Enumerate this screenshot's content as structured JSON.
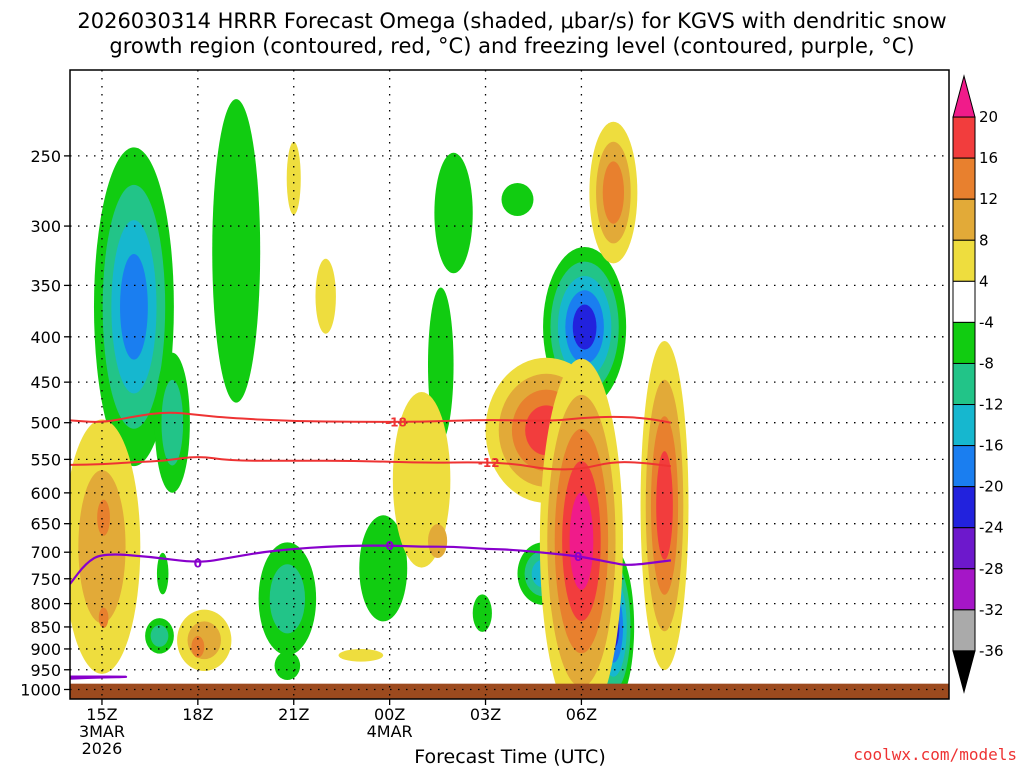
{
  "title_line1": "2026030314 HRRR Forecast Omega (shaded, μbar/s) for KGVS with dendritic snow",
  "title_line2": "growth region (contoured, red, °C) and freezing level (contoured, purple, °C)",
  "credit": "coolwx.com/models",
  "colors": {
    "frame": "#000000",
    "grid": "#000000",
    "ground": "#9c4a1e",
    "dgz": "#ee3333",
    "freezing": "#8800cc"
  },
  "chart_data": {
    "type": "heatmap",
    "xlabel": "Forecast Time (UTC)",
    "ylabel": "",
    "x_range_hours": [
      -1,
      26.5
    ],
    "x_ticks": [
      {
        "hour": 0,
        "label": "15Z",
        "sub1": "3MAR",
        "sub2": "2026"
      },
      {
        "hour": 3,
        "label": "18Z"
      },
      {
        "hour": 6,
        "label": "21Z"
      },
      {
        "hour": 9,
        "label": "00Z",
        "sub1": "4MAR"
      },
      {
        "hour": 12,
        "label": "03Z"
      },
      {
        "hour": 15,
        "label": "06Z"
      }
    ],
    "y_axis": {
      "scale": "log-pressure",
      "range_hPa": [
        200,
        1025
      ],
      "reversed": true
    },
    "y_ticks": [
      250,
      300,
      350,
      400,
      450,
      500,
      550,
      600,
      650,
      700,
      750,
      800,
      850,
      900,
      950,
      1000
    ],
    "y_tick_labels": [
      "250",
      "300",
      "350",
      "400",
      "450",
      "500",
      "550",
      "600",
      "650",
      "700",
      "750",
      "800",
      "850",
      "900",
      "950",
      "1000"
    ],
    "grid": "dotted",
    "surface_pressure_hPa": 985,
    "colorbar": {
      "label_values": [
        "20",
        "16",
        "12",
        "8",
        "4",
        "-4",
        "-8",
        "-12",
        "-16",
        "-20",
        "-24",
        "-28",
        "-32",
        "-36"
      ],
      "bins": [
        {
          "range": ">20",
          "color": "#f01b8a"
        },
        {
          "range": "16 to 20",
          "color": "#f23d3d"
        },
        {
          "range": "12 to 16",
          "color": "#e8802e"
        },
        {
          "range": "8 to 12",
          "color": "#e2aa38"
        },
        {
          "range": "4 to 8",
          "color": "#eedd3e"
        },
        {
          "range": "-4 to 4",
          "color": "#ffffff"
        },
        {
          "range": "-8 to -4",
          "color": "#11cc11"
        },
        {
          "range": "-12 to -8",
          "color": "#22c488"
        },
        {
          "range": "-16 to -12",
          "color": "#16b7cf"
        },
        {
          "range": "-20 to -16",
          "color": "#1a7ef0"
        },
        {
          "range": "-24 to -20",
          "color": "#2222dd"
        },
        {
          "range": "-28 to -24",
          "color": "#6d18cc"
        },
        {
          "range": "-32 to -28",
          "color": "#a516c7"
        },
        {
          "range": "-36 to -32",
          "color": "#aaaaaa"
        },
        {
          "range": "<-36",
          "color": "#000000"
        }
      ]
    },
    "omega_features": [
      {
        "name": "ascent-upper-15z",
        "hour": 1.0,
        "p": 370,
        "dh": 1.25,
        "dp": 145,
        "levels": [
          -4,
          -8,
          -12,
          -16
        ],
        "rot": 0
      },
      {
        "name": "ascent-tail-16z",
        "hour": 2.2,
        "p": 500,
        "dh": 0.55,
        "dp": 90,
        "levels": [
          -4,
          -8
        ],
        "rot": 0
      },
      {
        "name": "ascent-upper-19z",
        "hour": 4.2,
        "p": 320,
        "dh": 0.75,
        "dp": 120,
        "levels": [
          -4
        ],
        "rot": 0
      },
      {
        "name": "ascent-mid-21z",
        "hour": 5.8,
        "p": 790,
        "dh": 0.9,
        "dp": 115,
        "levels": [
          -4,
          -8
        ],
        "rot": 0
      },
      {
        "name": "ascent-mid-23z",
        "hour": 8.8,
        "p": 730,
        "dh": 0.75,
        "dp": 100,
        "levels": [
          -4
        ],
        "rot": 0
      },
      {
        "name": "ascent-upper-02z",
        "hour": 11.0,
        "p": 290,
        "dh": 0.6,
        "dp": 45,
        "levels": [
          -4
        ],
        "rot": 0
      },
      {
        "name": "ascent-mid-01z",
        "hour": 10.6,
        "p": 430,
        "dh": 0.4,
        "dp": 85,
        "levels": [
          -4
        ],
        "rot": 0
      },
      {
        "name": "ascent-cap-0330z",
        "hour": 13.0,
        "p": 280,
        "dh": 0.5,
        "dp": 12,
        "levels": [
          -4
        ],
        "rot": 0
      },
      {
        "name": "ascent-upper-06z",
        "hour": 15.1,
        "p": 390,
        "dh": 1.3,
        "dp": 80,
        "levels": [
          -4,
          -8,
          -12,
          -16,
          -20
        ],
        "rot": 0
      },
      {
        "name": "ascent-mid-04z",
        "hour": 13.8,
        "p": 740,
        "dh": 0.8,
        "dp": 60,
        "levels": [
          -4,
          -8,
          -12
        ],
        "rot": 0
      },
      {
        "name": "ascent-low-07z",
        "hour": 16.0,
        "p": 850,
        "dh": 0.65,
        "dp": 170,
        "levels": [
          -4,
          -8,
          -12,
          -16,
          -20
        ],
        "rot": 0
      },
      {
        "name": "ascent-small-17z",
        "hour": 1.8,
        "p": 870,
        "dh": 0.45,
        "dp": 40,
        "levels": [
          -4,
          -8
        ],
        "rot": 0
      },
      {
        "name": "ascent-small-1630z",
        "hour": 1.9,
        "p": 740,
        "dh": 0.18,
        "dp": 40,
        "levels": [
          -4
        ],
        "rot": 0
      },
      {
        "name": "ascent-low-21z",
        "hour": 5.8,
        "p": 940,
        "dh": 0.4,
        "dp": 35,
        "levels": [
          -4
        ],
        "rot": 0
      },
      {
        "name": "ascent-small-03z",
        "hour": 11.9,
        "p": 820,
        "dh": 0.3,
        "dp": 40,
        "levels": [
          -4
        ],
        "rot": 0
      },
      {
        "name": "descent-low-15z",
        "hour": 0.0,
        "p": 690,
        "dh": 1.2,
        "dp": 220,
        "levels": [
          4,
          8
        ],
        "rot": 0
      },
      {
        "name": "descent-core-15z",
        "hour": 0.05,
        "p": 640,
        "dh": 0.2,
        "dp": 30,
        "levels": [
          12
        ],
        "rot": 0
      },
      {
        "name": "descent-core2-15z",
        "hour": 0.05,
        "p": 830,
        "dh": 0.15,
        "dp": 22,
        "levels": [
          12
        ],
        "rot": 0
      },
      {
        "name": "descent-low-18z",
        "hour": 3.2,
        "p": 880,
        "dh": 0.85,
        "dp": 70,
        "levels": [
          4,
          8
        ],
        "rot": 0
      },
      {
        "name": "descent-core-18z",
        "hour": 3.0,
        "p": 895,
        "dh": 0.2,
        "dp": 25,
        "levels": [
          12
        ],
        "rot": 0
      },
      {
        "name": "descent-upper-2030z",
        "hour": 6.0,
        "p": 265,
        "dh": 0.22,
        "dp": 25,
        "levels": [
          4
        ],
        "rot": 0
      },
      {
        "name": "descent-upper-22z",
        "hour": 7.0,
        "p": 360,
        "dh": 0.32,
        "dp": 35,
        "levels": [
          4
        ],
        "rot": 0
      },
      {
        "name": "descent-low-2330z",
        "hour": 8.1,
        "p": 915,
        "dh": 0.7,
        "dp": 15,
        "levels": [
          4
        ],
        "rot": 0
      },
      {
        "name": "descent-mid-02z",
        "hour": 10.0,
        "p": 580,
        "dh": 0.9,
        "dp": 130,
        "levels": [
          4
        ],
        "rot": 0
      },
      {
        "name": "descent-mid-0230z",
        "hour": 10.5,
        "p": 680,
        "dh": 0.3,
        "dp": 30,
        "levels": [
          8
        ],
        "rot": 0
      },
      {
        "name": "descent-mid-04z",
        "hour": 13.9,
        "p": 510,
        "dh": 1.9,
        "dp": 95,
        "levels": [
          4,
          8,
          12,
          16
        ],
        "rot": 0
      },
      {
        "name": "descent-upper-07z",
        "hour": 16.0,
        "p": 275,
        "dh": 0.75,
        "dp": 50,
        "levels": [
          4,
          8,
          12
        ],
        "rot": 0
      },
      {
        "name": "descent-plume-06z",
        "hour": 15.0,
        "p": 680,
        "dh": 1.3,
        "dp": 300,
        "levels": [
          4,
          8,
          12,
          16,
          20
        ],
        "rot": 0
      },
      {
        "name": "descent-plume-0830z",
        "hour": 17.6,
        "p": 620,
        "dh": 0.75,
        "dp": 250,
        "levels": [
          4,
          8,
          12,
          16
        ],
        "rot": 0
      }
    ],
    "dgz_isotherms": [
      {
        "value": -18,
        "label": "-18",
        "label_hour": 9.2,
        "points": [
          [
            -1,
            497
          ],
          [
            0,
            500
          ],
          [
            1,
            492
          ],
          [
            2,
            486
          ],
          [
            3,
            490
          ],
          [
            4,
            494
          ],
          [
            6,
            498
          ],
          [
            8,
            499
          ],
          [
            10,
            499
          ],
          [
            12,
            496
          ],
          [
            14,
            498
          ],
          [
            15,
            494
          ],
          [
            16,
            492
          ],
          [
            17,
            494
          ],
          [
            17.8,
            500
          ]
        ]
      },
      {
        "value": -12,
        "label": "-12",
        "label_hour": 12.1,
        "points": [
          [
            -1,
            558
          ],
          [
            0,
            557
          ],
          [
            1,
            554
          ],
          [
            2,
            552
          ],
          [
            3,
            545
          ],
          [
            4,
            552
          ],
          [
            6,
            552
          ],
          [
            8,
            552
          ],
          [
            10,
            555
          ],
          [
            12,
            554
          ],
          [
            13,
            557
          ],
          [
            14,
            565
          ],
          [
            15,
            564
          ],
          [
            16,
            553
          ],
          [
            17,
            555
          ],
          [
            17.8,
            560
          ]
        ]
      }
    ],
    "freezing_level": {
      "value": 0,
      "label": "0",
      "label_hours": [
        3.0,
        9.0,
        14.9
      ],
      "points": [
        [
          -1,
          760
        ],
        [
          -0.5,
          720
        ],
        [
          0,
          702
        ],
        [
          1.5,
          708
        ],
        [
          3,
          720
        ],
        [
          4,
          710
        ],
        [
          5,
          700
        ],
        [
          6,
          694
        ],
        [
          7,
          690
        ],
        [
          8,
          688
        ],
        [
          9,
          688
        ],
        [
          10,
          690
        ],
        [
          11,
          690
        ],
        [
          12,
          694
        ],
        [
          13,
          696
        ],
        [
          14,
          702
        ],
        [
          15,
          708
        ],
        [
          16,
          720
        ],
        [
          16.5,
          725
        ],
        [
          17.8,
          715
        ]
      ]
    },
    "freezing_level_surface": {
      "points": [
        [
          -1,
          967
        ],
        [
          1.2,
          967
        ],
        [
          -0.3,
          970
        ],
        [
          -1,
          972
        ]
      ]
    }
  }
}
